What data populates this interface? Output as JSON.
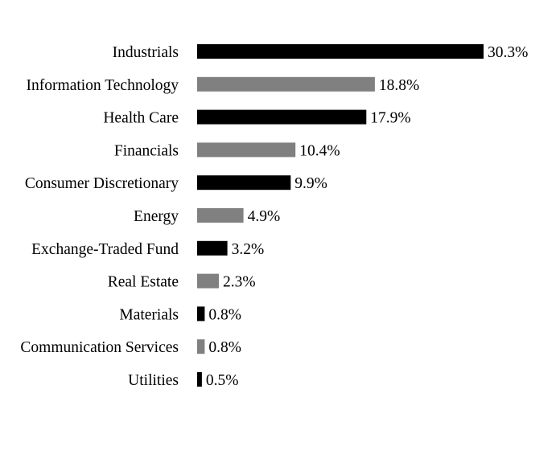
{
  "chart_data": {
    "type": "bar",
    "orientation": "horizontal",
    "categories": [
      "Industrials",
      "Information Technology",
      "Health Care",
      "Financials",
      "Consumer Discretionary",
      "Energy",
      "Exchange-Traded Fund",
      "Real Estate",
      "Materials",
      "Communication Services",
      "Utilities"
    ],
    "values": [
      30.3,
      18.8,
      17.9,
      10.4,
      9.9,
      4.9,
      3.2,
      2.3,
      0.8,
      0.8,
      0.5
    ],
    "value_labels": [
      "30.3%",
      "18.8%",
      "17.9%",
      "10.4%",
      "9.9%",
      "4.9%",
      "3.2%",
      "2.3%",
      "0.8%",
      "0.8%",
      "0.5%"
    ],
    "bar_colors": [
      "#000000",
      "#808080"
    ],
    "color_pattern": "alternating black and gray",
    "xlim": [
      0,
      30.3
    ],
    "unit": "%",
    "grid": false,
    "legend": "none",
    "axes_visible": false
  }
}
